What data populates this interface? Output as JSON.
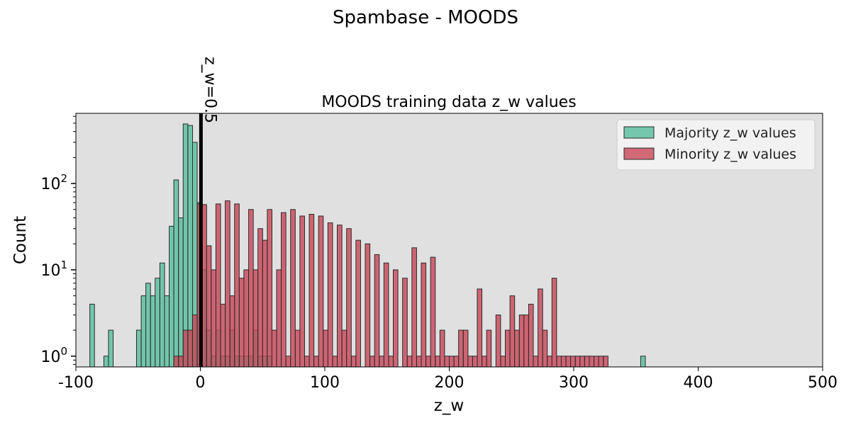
{
  "chart_data": {
    "type": "bar",
    "suptitle": "Spambase - MOODS",
    "title": "MOODS training data z_w values",
    "xlabel": "z_w",
    "ylabel": "Count",
    "xlim": [
      -100,
      500
    ],
    "ylim": [
      0.75,
      650
    ],
    "yscale": "log",
    "grid": false,
    "background": "#e0e0e0",
    "x_ticks": [
      "-100",
      "0",
      "100",
      "200",
      "300",
      "400",
      "500"
    ],
    "x_tick_values": [
      -100,
      0,
      100,
      200,
      300,
      400,
      500
    ],
    "y_ticks": [
      {
        "base": "10",
        "exp": "0",
        "value": 1
      },
      {
        "base": "10",
        "exp": "1",
        "value": 10
      },
      {
        "base": "10",
        "exp": "2",
        "value": 100
      }
    ],
    "bin_width": 3.75,
    "vline": {
      "x": 0.5,
      "label": "z_w=0.5",
      "color": "#000000"
    },
    "legend_position": "upper right",
    "series": [
      {
        "name": "Majority z_w values",
        "color": "#66c2a5",
        "bins": [
          [
            -88.8,
            4
          ],
          [
            -77.5,
            1
          ],
          [
            -73.8,
            2
          ],
          [
            -51.3,
            2
          ],
          [
            -47.5,
            5
          ],
          [
            -43.8,
            7
          ],
          [
            -40.0,
            5
          ],
          [
            -36.3,
            8
          ],
          [
            -32.5,
            12
          ],
          [
            -28.8,
            5
          ],
          [
            -25.0,
            32
          ],
          [
            -21.3,
            110
          ],
          [
            -17.5,
            40
          ],
          [
            -13.8,
            490
          ],
          [
            -10.0,
            470
          ],
          [
            -6.3,
            300
          ],
          [
            -2.5,
            60
          ],
          [
            1.3,
            10
          ],
          [
            5.0,
            2
          ],
          [
            8.8,
            1
          ],
          [
            12.5,
            2
          ],
          [
            16.3,
            1
          ],
          [
            20.0,
            1
          ],
          [
            23.8,
            2
          ],
          [
            27.5,
            1
          ],
          [
            31.3,
            1
          ],
          [
            35.0,
            1
          ],
          [
            38.8,
            1
          ],
          [
            42.5,
            2
          ],
          [
            46.3,
            1
          ],
          [
            50.0,
            1
          ],
          [
            53.8,
            1
          ],
          [
            353.8,
            1
          ]
        ]
      },
      {
        "name": "Minority z_w values",
        "color": "#c84556",
        "bins": [
          [
            -21.3,
            1
          ],
          [
            -17.5,
            1
          ],
          [
            -13.8,
            2
          ],
          [
            -10.0,
            2
          ],
          [
            -6.3,
            3
          ],
          [
            -2.5,
            58
          ],
          [
            1.3,
            57
          ],
          [
            5.0,
            19
          ],
          [
            8.8,
            10
          ],
          [
            12.5,
            58
          ],
          [
            16.3,
            4
          ],
          [
            20.0,
            63
          ],
          [
            23.8,
            5
          ],
          [
            27.5,
            58
          ],
          [
            31.3,
            8
          ],
          [
            35.0,
            10
          ],
          [
            38.8,
            50
          ],
          [
            42.5,
            10
          ],
          [
            46.3,
            30
          ],
          [
            50.0,
            22
          ],
          [
            53.8,
            50
          ],
          [
            57.5,
            2
          ],
          [
            61.3,
            10
          ],
          [
            65.0,
            46
          ],
          [
            68.8,
            1
          ],
          [
            72.5,
            50
          ],
          [
            76.3,
            2
          ],
          [
            80.0,
            42
          ],
          [
            83.8,
            1
          ],
          [
            87.5,
            44
          ],
          [
            91.3,
            1
          ],
          [
            95.0,
            42
          ],
          [
            98.8,
            2
          ],
          [
            102.5,
            35
          ],
          [
            106.3,
            1
          ],
          [
            110.0,
            33
          ],
          [
            113.8,
            2
          ],
          [
            117.5,
            30
          ],
          [
            121.3,
            1
          ],
          [
            125.0,
            22
          ],
          [
            128.8,
            0
          ],
          [
            132.5,
            20
          ],
          [
            136.3,
            1
          ],
          [
            140.0,
            15
          ],
          [
            143.8,
            1
          ],
          [
            147.5,
            12
          ],
          [
            151.3,
            1
          ],
          [
            155.0,
            10
          ],
          [
            158.8,
            0
          ],
          [
            162.5,
            8
          ],
          [
            166.3,
            1
          ],
          [
            170.0,
            18
          ],
          [
            173.8,
            1
          ],
          [
            177.5,
            12
          ],
          [
            181.3,
            1
          ],
          [
            185.0,
            14
          ],
          [
            188.8,
            1
          ],
          [
            192.5,
            2
          ],
          [
            196.3,
            1
          ],
          [
            200.0,
            1
          ],
          [
            203.8,
            1
          ],
          [
            207.5,
            2
          ],
          [
            211.3,
            2
          ],
          [
            215.0,
            1
          ],
          [
            218.8,
            1
          ],
          [
            222.5,
            6
          ],
          [
            226.3,
            1
          ],
          [
            230.0,
            2
          ],
          [
            233.8,
            0
          ],
          [
            237.5,
            3
          ],
          [
            241.3,
            1
          ],
          [
            245.0,
            2
          ],
          [
            248.8,
            5
          ],
          [
            252.5,
            2
          ],
          [
            256.3,
            3
          ],
          [
            260.0,
            3
          ],
          [
            263.8,
            4
          ],
          [
            267.5,
            1
          ],
          [
            271.3,
            6
          ],
          [
            275.0,
            2
          ],
          [
            278.8,
            1
          ],
          [
            282.5,
            8
          ],
          [
            286.3,
            1
          ],
          [
            290.0,
            1
          ],
          [
            293.8,
            1
          ],
          [
            297.5,
            1
          ],
          [
            301.3,
            1
          ],
          [
            305.0,
            1
          ],
          [
            308.8,
            1
          ],
          [
            312.5,
            1
          ],
          [
            316.3,
            1
          ],
          [
            320.0,
            1
          ],
          [
            323.8,
            1
          ],
          [
            327.5,
            0
          ],
          [
            331.3,
            0
          ],
          [
            335.0,
            0
          ],
          [
            338.8,
            0
          ],
          [
            342.5,
            0
          ],
          [
            346.3,
            0
          ],
          [
            350.0,
            0
          ]
        ]
      }
    ]
  }
}
